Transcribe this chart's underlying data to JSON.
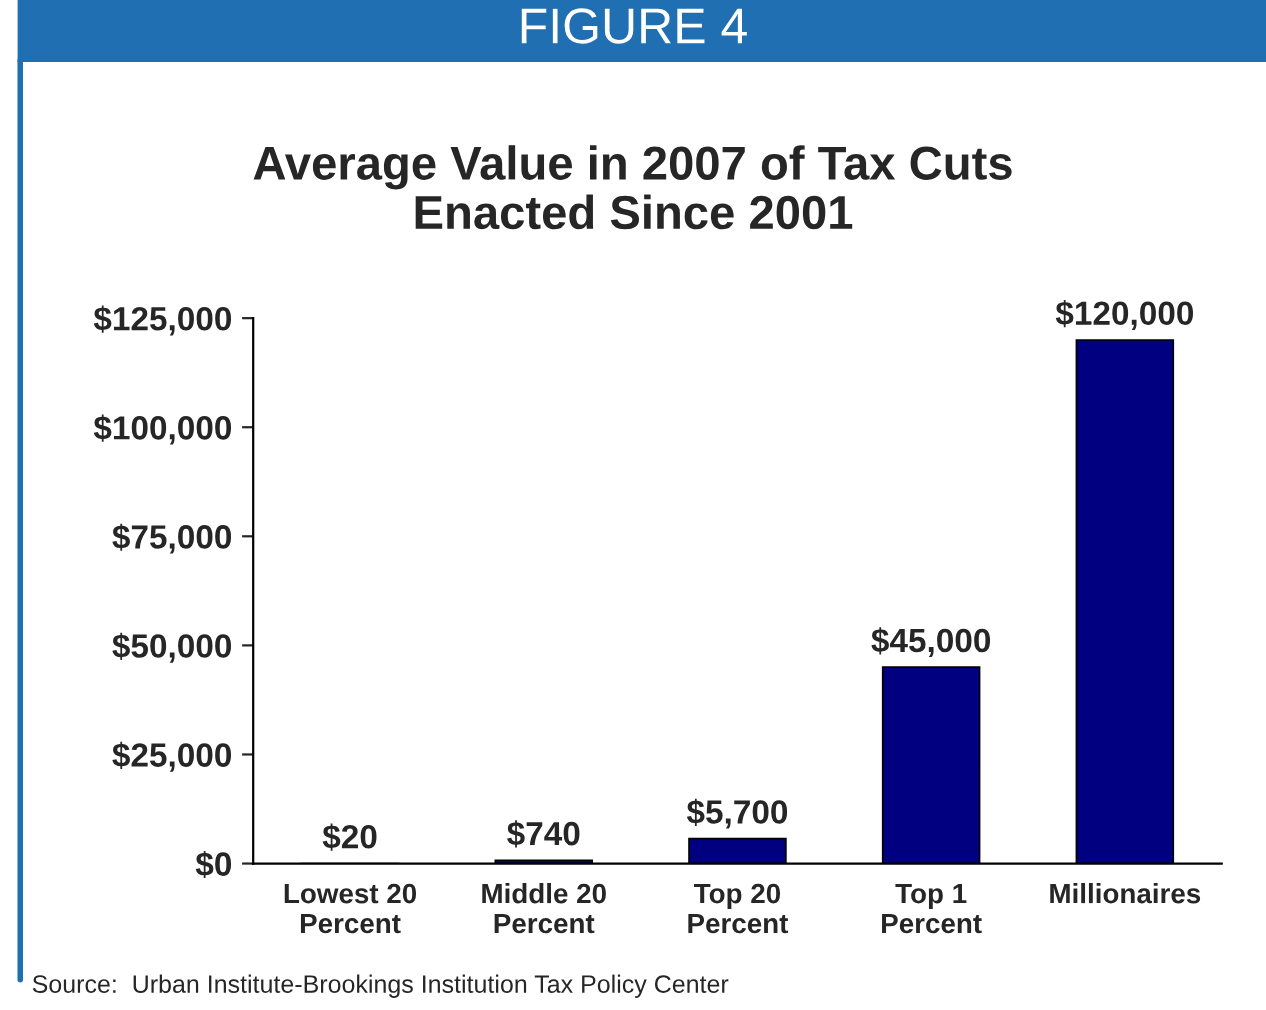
{
  "chart_data": {
    "type": "bar",
    "title": "Average Value in 2007 of Tax Cuts\nEnacted Since 2001",
    "categories": [
      "Lowest 20\nPercent",
      "Middle 20\nPercent",
      "Top 20\nPercent",
      "Top 1\nPercent",
      "Millionaires"
    ],
    "values": [
      20,
      740,
      5700,
      45000,
      120000
    ],
    "value_labels": [
      "$20",
      "$740",
      "$5,700",
      "$45,000",
      "$120,000"
    ],
    "color": "#000080",
    "ylim": [
      0,
      125000
    ],
    "yticks": [
      {
        "value": 0,
        "label": "$0"
      },
      {
        "value": 25000,
        "label": "$25,000"
      },
      {
        "value": 50000,
        "label": "$50,000"
      },
      {
        "value": 75000,
        "label": "$75,000"
      },
      {
        "value": 100000,
        "label": "$100,000"
      },
      {
        "value": 125000,
        "label": "$125,000"
      }
    ],
    "grid": false,
    "annotations": [
      "FIGURE 4",
      "Source:  Urban Institute-Brookings Institution Tax Policy Center"
    ]
  }
}
